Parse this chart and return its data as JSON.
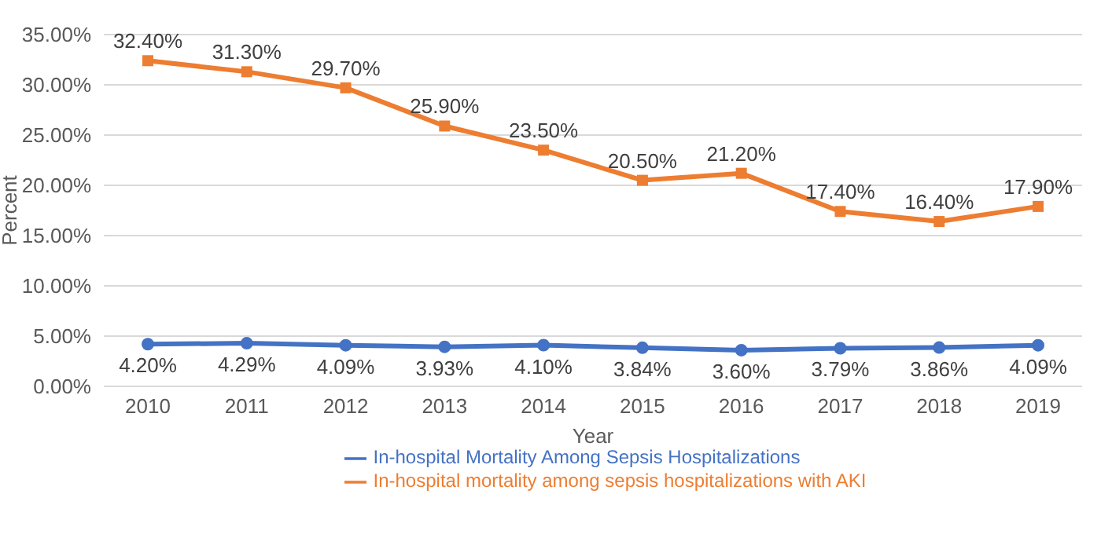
{
  "chart_data": {
    "type": "line",
    "xlabel": "Year",
    "ylabel": "Percent",
    "categories": [
      "2010",
      "2011",
      "2012",
      "2013",
      "2014",
      "2015",
      "2016",
      "2017",
      "2018",
      "2019"
    ],
    "series": [
      {
        "name": "In-hospital Mortality Among Sepsis Hospitalizations",
        "color": "#4472c4",
        "marker": "circle",
        "values": [
          4.2,
          4.29,
          4.09,
          3.93,
          4.1,
          3.84,
          3.6,
          3.79,
          3.86,
          4.09
        ],
        "value_labels": [
          "4.20%",
          "4.29%",
          "4.09%",
          "3.93%",
          "4.10%",
          "3.84%",
          "3.60%",
          "3.79%",
          "3.86%",
          "4.09%"
        ]
      },
      {
        "name": "In-hospital mortality among sepsis hospitalizations with AKI",
        "color": "#ed7d31",
        "marker": "square",
        "values": [
          32.4,
          31.3,
          29.7,
          25.9,
          23.5,
          20.5,
          21.2,
          17.4,
          16.4,
          17.9
        ],
        "value_labels": [
          "32.40%",
          "31.30%",
          "29.70%",
          "25.90%",
          "23.50%",
          "20.50%",
          "21.20%",
          "17.40%",
          "16.40%",
          "17.90%"
        ]
      }
    ],
    "ylim": [
      0,
      35
    ],
    "yticks": [
      {
        "value": 0,
        "label": "0.00%"
      },
      {
        "value": 5,
        "label": "5.00%"
      },
      {
        "value": 10,
        "label": "10.00%"
      },
      {
        "value": 15,
        "label": "15.00%"
      },
      {
        "value": 20,
        "label": "20.00%"
      },
      {
        "value": 25,
        "label": "25.00%"
      },
      {
        "value": 30,
        "label": "30.00%"
      },
      {
        "value": 35,
        "label": "35.00%"
      }
    ],
    "grid": "y",
    "legend": "bottom",
    "line_style": "solid"
  }
}
